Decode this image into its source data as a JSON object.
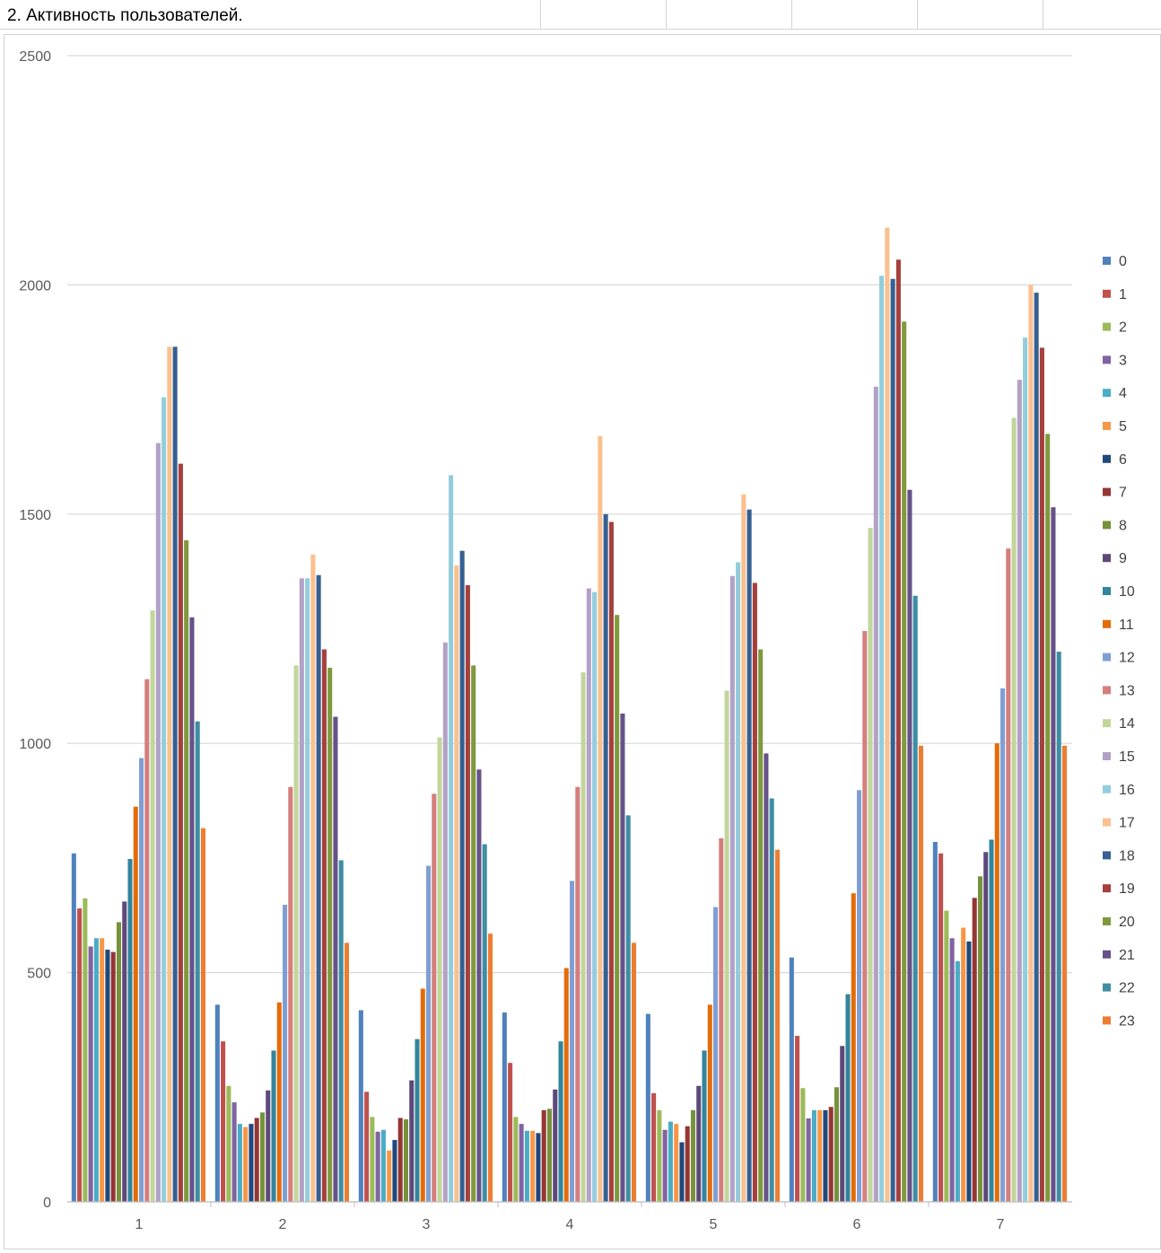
{
  "sheet": {
    "title": "2. Активность пользователей."
  },
  "chart_data": {
    "type": "bar",
    "title": "",
    "xlabel": "",
    "ylabel": "",
    "ylim": [
      0,
      2500
    ],
    "yticks": [
      "0",
      "500",
      "1000",
      "1500",
      "2000",
      "2500"
    ],
    "grid": true,
    "legend_position": "right",
    "categories": [
      "1",
      "2",
      "3",
      "4",
      "5",
      "6",
      "7"
    ],
    "series": [
      {
        "name": "0",
        "color": "#4f81bd",
        "values": [
          760,
          430,
          418,
          413,
          410,
          533,
          785
        ]
      },
      {
        "name": "1",
        "color": "#c0504d",
        "values": [
          640,
          350,
          240,
          303,
          237,
          362,
          760
        ]
      },
      {
        "name": "2",
        "color": "#9bbb59",
        "values": [
          662,
          253,
          185,
          185,
          200,
          248,
          635
        ]
      },
      {
        "name": "3",
        "color": "#8064a2",
        "values": [
          557,
          217,
          153,
          170,
          157,
          182,
          575
        ]
      },
      {
        "name": "4",
        "color": "#4bacc6",
        "values": [
          575,
          170,
          157,
          155,
          175,
          200,
          525
        ]
      },
      {
        "name": "5",
        "color": "#f79646",
        "values": [
          575,
          163,
          112,
          155,
          170,
          200,
          598
        ]
      },
      {
        "name": "6",
        "color": "#1f497d",
        "values": [
          550,
          170,
          135,
          150,
          130,
          200,
          568
        ]
      },
      {
        "name": "7",
        "color": "#943634",
        "values": [
          545,
          183,
          183,
          200,
          165,
          207,
          663
        ]
      },
      {
        "name": "8",
        "color": "#76923c",
        "values": [
          610,
          195,
          180,
          203,
          200,
          250,
          710
        ]
      },
      {
        "name": "9",
        "color": "#5f497a",
        "values": [
          655,
          243,
          265,
          245,
          253,
          340,
          763
        ]
      },
      {
        "name": "10",
        "color": "#31859c",
        "values": [
          748,
          330,
          355,
          350,
          330,
          453,
          790
        ]
      },
      {
        "name": "11",
        "color": "#e36c09",
        "values": [
          862,
          435,
          465,
          510,
          430,
          673,
          1000
        ]
      },
      {
        "name": "12",
        "color": "#7f9fd4",
        "values": [
          968,
          648,
          733,
          700,
          643,
          898,
          1120
        ]
      },
      {
        "name": "13",
        "color": "#d47f7d",
        "values": [
          1140,
          905,
          890,
          905,
          793,
          1245,
          1425
        ]
      },
      {
        "name": "14",
        "color": "#c2d69b",
        "values": [
          1290,
          1170,
          1013,
          1155,
          1115,
          1470,
          1710
        ]
      },
      {
        "name": "15",
        "color": "#b2a1c7",
        "values": [
          1655,
          1360,
          1220,
          1338,
          1365,
          1778,
          1793
        ]
      },
      {
        "name": "16",
        "color": "#92cddc",
        "values": [
          1755,
          1360,
          1585,
          1330,
          1395,
          2020,
          1885
        ]
      },
      {
        "name": "17",
        "color": "#fac08f",
        "values": [
          1865,
          1412,
          1388,
          1670,
          1543,
          2125,
          2000
        ]
      },
      {
        "name": "18",
        "color": "#366092",
        "values": [
          1865,
          1367,
          1420,
          1500,
          1510,
          2013,
          1983
        ]
      },
      {
        "name": "19",
        "color": "#a5403d",
        "values": [
          1610,
          1205,
          1345,
          1483,
          1350,
          2055,
          1863
        ]
      },
      {
        "name": "20",
        "color": "#7f9a3d",
        "values": [
          1443,
          1165,
          1170,
          1280,
          1205,
          1920,
          1675
        ]
      },
      {
        "name": "21",
        "color": "#66528a",
        "values": [
          1275,
          1058,
          943,
          1065,
          978,
          1553,
          1515
        ]
      },
      {
        "name": "22",
        "color": "#3e8ea3",
        "values": [
          1048,
          745,
          780,
          843,
          880,
          1322,
          1200
        ]
      },
      {
        "name": "23",
        "color": "#ed7d31",
        "values": [
          815,
          565,
          585,
          565,
          768,
          995,
          995
        ]
      }
    ]
  }
}
